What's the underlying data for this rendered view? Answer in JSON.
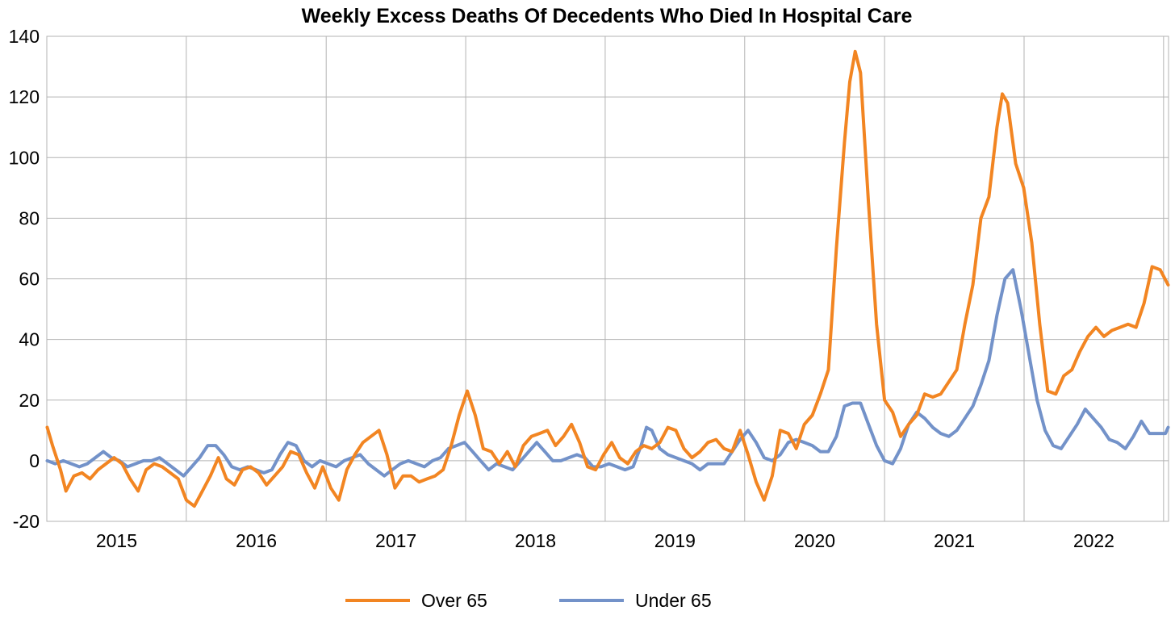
{
  "chart_data": {
    "type": "line",
    "title": "Weekly Excess Deaths Of Decedents Who Died In Hospital Care",
    "xlabel": "",
    "ylabel": "",
    "ylim": [
      -20,
      140
    ],
    "yticks": [
      -20,
      0,
      20,
      40,
      60,
      80,
      100,
      120,
      140
    ],
    "xlim": [
      "2015-01-01",
      "2023-01-14"
    ],
    "xtick_labels": [
      "2015",
      "2016",
      "2017",
      "2018",
      "2019",
      "2020",
      "2021",
      "2022"
    ],
    "grid": true,
    "legend_position": "bottom",
    "series": [
      {
        "name": "Over 65",
        "color": "#f28522",
        "points": [
          [
            "2015-01-02",
            11
          ],
          [
            "2015-01-16",
            5
          ],
          [
            "2015-02-06",
            -3
          ],
          [
            "2015-02-20",
            -10
          ],
          [
            "2015-03-13",
            -5
          ],
          [
            "2015-04-03",
            -4
          ],
          [
            "2015-04-24",
            -6
          ],
          [
            "2015-05-15",
            -3
          ],
          [
            "2015-06-05",
            -1
          ],
          [
            "2015-06-26",
            1
          ],
          [
            "2015-07-17",
            -1
          ],
          [
            "2015-08-07",
            -6
          ],
          [
            "2015-08-28",
            -10
          ],
          [
            "2015-09-18",
            -3
          ],
          [
            "2015-10-09",
            -1
          ],
          [
            "2015-10-30",
            -2
          ],
          [
            "2015-11-20",
            -4
          ],
          [
            "2015-12-11",
            -6
          ],
          [
            "2016-01-01",
            -13
          ],
          [
            "2016-01-22",
            -15
          ],
          [
            "2016-02-12",
            -10
          ],
          [
            "2016-03-04",
            -5
          ],
          [
            "2016-03-25",
            1
          ],
          [
            "2016-04-15",
            -6
          ],
          [
            "2016-05-06",
            -8
          ],
          [
            "2016-05-27",
            -3
          ],
          [
            "2016-06-17",
            -2
          ],
          [
            "2016-07-08",
            -4
          ],
          [
            "2016-07-29",
            -8
          ],
          [
            "2016-08-19",
            -5
          ],
          [
            "2016-09-09",
            -2
          ],
          [
            "2016-09-30",
            3
          ],
          [
            "2016-10-21",
            2
          ],
          [
            "2016-11-11",
            -4
          ],
          [
            "2016-12-02",
            -9
          ],
          [
            "2016-12-23",
            -2
          ],
          [
            "2017-01-13",
            -9
          ],
          [
            "2017-02-03",
            -13
          ],
          [
            "2017-02-24",
            -3
          ],
          [
            "2017-03-17",
            2
          ],
          [
            "2017-04-07",
            6
          ],
          [
            "2017-04-28",
            8
          ],
          [
            "2017-05-19",
            10
          ],
          [
            "2017-06-09",
            2
          ],
          [
            "2017-06-30",
            -9
          ],
          [
            "2017-07-21",
            -5
          ],
          [
            "2017-08-11",
            -5
          ],
          [
            "2017-09-01",
            -7
          ],
          [
            "2017-09-22",
            -6
          ],
          [
            "2017-10-13",
            -5
          ],
          [
            "2017-11-03",
            -3
          ],
          [
            "2017-11-24",
            5
          ],
          [
            "2017-12-15",
            15
          ],
          [
            "2018-01-05",
            23
          ],
          [
            "2018-01-26",
            15
          ],
          [
            "2018-02-16",
            4
          ],
          [
            "2018-03-09",
            3
          ],
          [
            "2018-03-30",
            -1
          ],
          [
            "2018-04-20",
            3
          ],
          [
            "2018-05-11",
            -2
          ],
          [
            "2018-06-01",
            5
          ],
          [
            "2018-06-22",
            8
          ],
          [
            "2018-07-13",
            9
          ],
          [
            "2018-08-03",
            10
          ],
          [
            "2018-08-24",
            5
          ],
          [
            "2018-09-14",
            8
          ],
          [
            "2018-10-05",
            12
          ],
          [
            "2018-10-26",
            6
          ],
          [
            "2018-11-16",
            -2
          ],
          [
            "2018-12-07",
            -3
          ],
          [
            "2018-12-28",
            2
          ],
          [
            "2019-01-18",
            6
          ],
          [
            "2019-02-08",
            1
          ],
          [
            "2019-03-01",
            -1
          ],
          [
            "2019-03-22",
            3
          ],
          [
            "2019-04-12",
            5
          ],
          [
            "2019-05-03",
            4
          ],
          [
            "2019-05-24",
            6
          ],
          [
            "2019-06-14",
            11
          ],
          [
            "2019-07-05",
            10
          ],
          [
            "2019-07-26",
            4
          ],
          [
            "2019-08-16",
            1
          ],
          [
            "2019-09-06",
            3
          ],
          [
            "2019-09-27",
            6
          ],
          [
            "2019-10-18",
            7
          ],
          [
            "2019-11-08",
            4
          ],
          [
            "2019-11-29",
            3
          ],
          [
            "2019-12-20",
            10
          ],
          [
            "2020-01-10",
            2
          ],
          [
            "2020-01-31",
            -7
          ],
          [
            "2020-02-21",
            -13
          ],
          [
            "2020-03-13",
            -5
          ],
          [
            "2020-04-03",
            10
          ],
          [
            "2020-04-24",
            9
          ],
          [
            "2020-05-15",
            4
          ],
          [
            "2020-06-05",
            12
          ],
          [
            "2020-06-26",
            15
          ],
          [
            "2020-07-17",
            22
          ],
          [
            "2020-08-07",
            30
          ],
          [
            "2020-08-28",
            70
          ],
          [
            "2020-09-18",
            105
          ],
          [
            "2020-10-02",
            125
          ],
          [
            "2020-10-16",
            135
          ],
          [
            "2020-10-30",
            128
          ],
          [
            "2020-11-20",
            85
          ],
          [
            "2020-12-11",
            45
          ],
          [
            "2021-01-01",
            20
          ],
          [
            "2021-01-22",
            16
          ],
          [
            "2021-02-12",
            8
          ],
          [
            "2021-03-05",
            12
          ],
          [
            "2021-03-26",
            15
          ],
          [
            "2021-04-16",
            22
          ],
          [
            "2021-05-07",
            21
          ],
          [
            "2021-05-28",
            22
          ],
          [
            "2021-06-18",
            26
          ],
          [
            "2021-07-09",
            30
          ],
          [
            "2021-07-30",
            45
          ],
          [
            "2021-08-20",
            58
          ],
          [
            "2021-09-10",
            80
          ],
          [
            "2021-10-01",
            87
          ],
          [
            "2021-10-22",
            110
          ],
          [
            "2021-11-05",
            121
          ],
          [
            "2021-11-19",
            118
          ],
          [
            "2021-12-10",
            98
          ],
          [
            "2021-12-31",
            90
          ],
          [
            "2022-01-21",
            72
          ],
          [
            "2022-02-11",
            45
          ],
          [
            "2022-03-04",
            23
          ],
          [
            "2022-03-25",
            22
          ],
          [
            "2022-04-15",
            28
          ],
          [
            "2022-05-06",
            30
          ],
          [
            "2022-05-27",
            36
          ],
          [
            "2022-06-17",
            41
          ],
          [
            "2022-07-08",
            44
          ],
          [
            "2022-07-29",
            41
          ],
          [
            "2022-08-19",
            43
          ],
          [
            "2022-09-09",
            44
          ],
          [
            "2022-09-30",
            45
          ],
          [
            "2022-10-21",
            44
          ],
          [
            "2022-11-11",
            52
          ],
          [
            "2022-12-02",
            64
          ],
          [
            "2022-12-23",
            63
          ],
          [
            "2023-01-13",
            58
          ]
        ]
      },
      {
        "name": "Under 65",
        "color": "#7392c9",
        "points": [
          [
            "2015-01-02",
            0
          ],
          [
            "2015-01-23",
            -1
          ],
          [
            "2015-02-13",
            0
          ],
          [
            "2015-03-06",
            -1
          ],
          [
            "2015-03-27",
            -2
          ],
          [
            "2015-04-17",
            -1
          ],
          [
            "2015-05-08",
            1
          ],
          [
            "2015-05-29",
            3
          ],
          [
            "2015-06-19",
            1
          ],
          [
            "2015-07-10",
            0
          ],
          [
            "2015-07-31",
            -2
          ],
          [
            "2015-08-21",
            -1
          ],
          [
            "2015-09-11",
            0
          ],
          [
            "2015-10-02",
            0
          ],
          [
            "2015-10-23",
            1
          ],
          [
            "2015-11-13",
            -1
          ],
          [
            "2015-12-04",
            -3
          ],
          [
            "2015-12-25",
            -5
          ],
          [
            "2016-01-15",
            -2
          ],
          [
            "2016-02-05",
            1
          ],
          [
            "2016-02-26",
            5
          ],
          [
            "2016-03-18",
            5
          ],
          [
            "2016-04-08",
            2
          ],
          [
            "2016-04-29",
            -2
          ],
          [
            "2016-05-20",
            -3
          ],
          [
            "2016-06-10",
            -2
          ],
          [
            "2016-07-01",
            -3
          ],
          [
            "2016-07-22",
            -4
          ],
          [
            "2016-08-12",
            -3
          ],
          [
            "2016-09-02",
            2
          ],
          [
            "2016-09-23",
            6
          ],
          [
            "2016-10-14",
            5
          ],
          [
            "2016-11-04",
            0
          ],
          [
            "2016-11-25",
            -2
          ],
          [
            "2016-12-16",
            0
          ],
          [
            "2017-01-06",
            -1
          ],
          [
            "2017-01-27",
            -2
          ],
          [
            "2017-02-17",
            0
          ],
          [
            "2017-03-10",
            1
          ],
          [
            "2017-03-31",
            2
          ],
          [
            "2017-04-21",
            -1
          ],
          [
            "2017-05-12",
            -3
          ],
          [
            "2017-06-02",
            -5
          ],
          [
            "2017-06-23",
            -3
          ],
          [
            "2017-07-14",
            -1
          ],
          [
            "2017-08-04",
            0
          ],
          [
            "2017-08-25",
            -1
          ],
          [
            "2017-09-15",
            -2
          ],
          [
            "2017-10-06",
            0
          ],
          [
            "2017-10-27",
            1
          ],
          [
            "2017-11-17",
            4
          ],
          [
            "2017-12-08",
            5
          ],
          [
            "2017-12-29",
            6
          ],
          [
            "2018-01-19",
            3
          ],
          [
            "2018-02-09",
            0
          ],
          [
            "2018-03-02",
            -3
          ],
          [
            "2018-03-23",
            -1
          ],
          [
            "2018-04-13",
            -2
          ],
          [
            "2018-05-04",
            -3
          ],
          [
            "2018-05-25",
            0
          ],
          [
            "2018-06-15",
            3
          ],
          [
            "2018-07-06",
            6
          ],
          [
            "2018-07-27",
            3
          ],
          [
            "2018-08-17",
            0
          ],
          [
            "2018-09-07",
            0
          ],
          [
            "2018-09-28",
            1
          ],
          [
            "2018-10-19",
            2
          ],
          [
            "2018-11-09",
            1
          ],
          [
            "2018-11-30",
            -2
          ],
          [
            "2018-12-21",
            -2
          ],
          [
            "2019-01-11",
            -1
          ],
          [
            "2019-02-01",
            -2
          ],
          [
            "2019-02-22",
            -3
          ],
          [
            "2019-03-15",
            -2
          ],
          [
            "2019-04-05",
            5
          ],
          [
            "2019-04-19",
            11
          ],
          [
            "2019-05-03",
            10
          ],
          [
            "2019-05-24",
            4
          ],
          [
            "2019-06-14",
            2
          ],
          [
            "2019-07-05",
            1
          ],
          [
            "2019-07-26",
            0
          ],
          [
            "2019-08-16",
            -1
          ],
          [
            "2019-09-06",
            -3
          ],
          [
            "2019-09-27",
            -1
          ],
          [
            "2019-10-18",
            -1
          ],
          [
            "2019-11-08",
            -1
          ],
          [
            "2019-11-29",
            3
          ],
          [
            "2019-12-20",
            7
          ],
          [
            "2020-01-10",
            10
          ],
          [
            "2020-01-31",
            6
          ],
          [
            "2020-02-21",
            1
          ],
          [
            "2020-03-13",
            0
          ],
          [
            "2020-04-03",
            2
          ],
          [
            "2020-04-24",
            6
          ],
          [
            "2020-05-15",
            7
          ],
          [
            "2020-06-05",
            6
          ],
          [
            "2020-06-26",
            5
          ],
          [
            "2020-07-17",
            3
          ],
          [
            "2020-08-07",
            3
          ],
          [
            "2020-08-28",
            8
          ],
          [
            "2020-09-18",
            18
          ],
          [
            "2020-10-09",
            19
          ],
          [
            "2020-10-30",
            19
          ],
          [
            "2020-11-20",
            12
          ],
          [
            "2020-12-11",
            5
          ],
          [
            "2021-01-01",
            0
          ],
          [
            "2021-01-22",
            -1
          ],
          [
            "2021-02-12",
            4
          ],
          [
            "2021-03-05",
            12
          ],
          [
            "2021-03-26",
            16
          ],
          [
            "2021-04-16",
            14
          ],
          [
            "2021-05-07",
            11
          ],
          [
            "2021-05-28",
            9
          ],
          [
            "2021-06-18",
            8
          ],
          [
            "2021-07-09",
            10
          ],
          [
            "2021-07-30",
            14
          ],
          [
            "2021-08-20",
            18
          ],
          [
            "2021-09-10",
            25
          ],
          [
            "2021-10-01",
            33
          ],
          [
            "2021-10-22",
            48
          ],
          [
            "2021-11-12",
            60
          ],
          [
            "2021-12-03",
            63
          ],
          [
            "2021-12-24",
            50
          ],
          [
            "2022-01-14",
            35
          ],
          [
            "2022-02-04",
            20
          ],
          [
            "2022-02-25",
            10
          ],
          [
            "2022-03-18",
            5
          ],
          [
            "2022-04-08",
            4
          ],
          [
            "2022-04-29",
            8
          ],
          [
            "2022-05-20",
            12
          ],
          [
            "2022-06-10",
            17
          ],
          [
            "2022-07-01",
            14
          ],
          [
            "2022-07-22",
            11
          ],
          [
            "2022-08-12",
            7
          ],
          [
            "2022-09-02",
            6
          ],
          [
            "2022-09-23",
            4
          ],
          [
            "2022-10-14",
            8
          ],
          [
            "2022-11-04",
            13
          ],
          [
            "2022-11-25",
            9
          ],
          [
            "2022-12-16",
            9
          ],
          [
            "2023-01-06",
            9
          ],
          [
            "2023-01-13",
            11
          ]
        ]
      }
    ]
  }
}
